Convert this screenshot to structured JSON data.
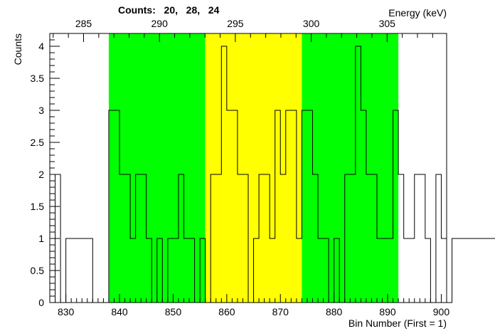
{
  "chart_data": {
    "type": "histogram",
    "title": "Counts:   20,   28,   24",
    "xlabel": "Bin Number (First = 1)",
    "ylabel": "Counts",
    "x2label": "Energy (keV)",
    "xlim": [
      827,
      901
    ],
    "ylim": [
      0,
      4.2
    ],
    "x_ticks": [
      830,
      840,
      850,
      860,
      870,
      880,
      890,
      900
    ],
    "y_ticks": [
      0,
      0.5,
      1,
      1.5,
      2,
      2.5,
      3,
      3.5,
      4
    ],
    "y_tick_labels": [
      "0",
      "0.5",
      "1",
      "1.5",
      "2",
      "2.5",
      "3",
      "3.5",
      "4"
    ],
    "energy_ticks": [
      285,
      290,
      295,
      300,
      305
    ],
    "energy_calibration": {
      "bin_at_285keV": 833.3,
      "bin_at_305keV": 889.9
    },
    "regions": [
      {
        "from": 838,
        "to": 856,
        "color": "#00ff00"
      },
      {
        "from": 856,
        "to": 874,
        "color": "#ffff00"
      },
      {
        "from": 874,
        "to": 892,
        "color": "#00ff00"
      }
    ],
    "bin_start": 827,
    "bin_width": 1,
    "counts": [
      0,
      2,
      0,
      1,
      1,
      1,
      1,
      1,
      0,
      0,
      0,
      3,
      3,
      2,
      2,
      1,
      2,
      2,
      1,
      0,
      1,
      0,
      1,
      1,
      2,
      1,
      1,
      0,
      1,
      0,
      2,
      2,
      4,
      3,
      3,
      2,
      2,
      0,
      1,
      2,
      2,
      1,
      3,
      2,
      3,
      3,
      1,
      3,
      3,
      2,
      1,
      1,
      0,
      1,
      0,
      2,
      2,
      4,
      3,
      2,
      2,
      1,
      1,
      1,
      3,
      2,
      1,
      1,
      2,
      2,
      1,
      0,
      2,
      1,
      0,
      1,
      1,
      1,
      1,
      1,
      1,
      1,
      1,
      1
    ]
  }
}
